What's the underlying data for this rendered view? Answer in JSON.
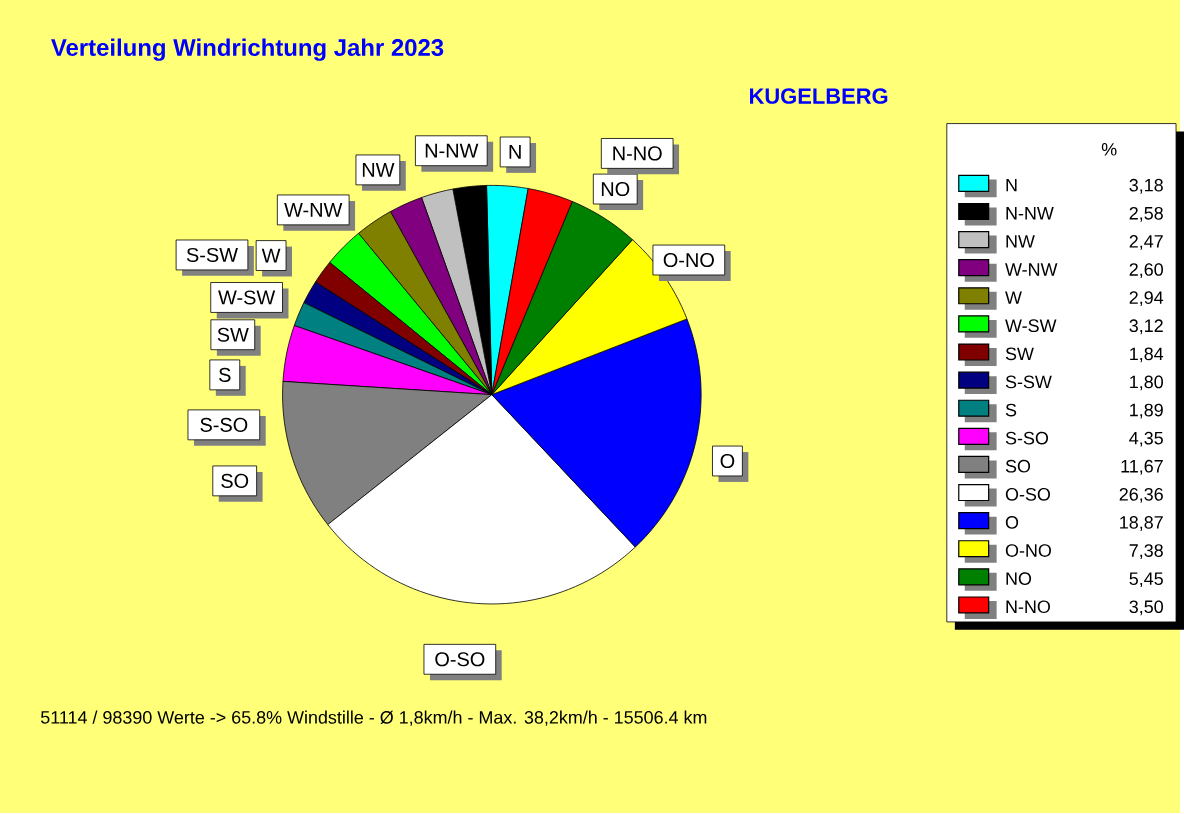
{
  "chart_data": {
    "type": "pie",
    "title": "Verteilung Windrichtung   Jahr 2023",
    "subtitle": "KUGELBERG",
    "legend_title": "%",
    "legend": "right",
    "categories": [
      "N",
      "N-NW",
      "NW",
      "W-NW",
      "W",
      "W-SW",
      "SW",
      "S-SW",
      "S",
      "S-SO",
      "SO",
      "O-SO",
      "O",
      "O-NO",
      "NO",
      "N-NO"
    ],
    "values": [
      3.18,
      2.58,
      2.47,
      2.6,
      2.94,
      3.12,
      1.84,
      1.8,
      1.89,
      4.35,
      11.67,
      26.36,
      18.87,
      7.38,
      5.45,
      3.5
    ],
    "value_labels": [
      "3,18",
      "2,58",
      "2,47",
      "2,60",
      "2,94",
      "3,12",
      "1,84",
      "1,80",
      "1,89",
      "4,35",
      "11,67",
      "26,36",
      "18,87",
      "7,38",
      "5,45",
      "3,50"
    ],
    "colors": [
      "#00ffff",
      "#000000",
      "#c0c0c0",
      "#800080",
      "#808000",
      "#00ff00",
      "#800000",
      "#000080",
      "#008080",
      "#ff00ff",
      "#808080",
      "#ffffff",
      "#0000ff",
      "#ffff00",
      "#008000",
      "#ff0000"
    ],
    "annotations": [
      "51114 / 98390 Werte  -> 65.8% Windstille   -   Ø 1,8km/h  -  Max. 38,2km/h   -   15506.4 km"
    ]
  }
}
